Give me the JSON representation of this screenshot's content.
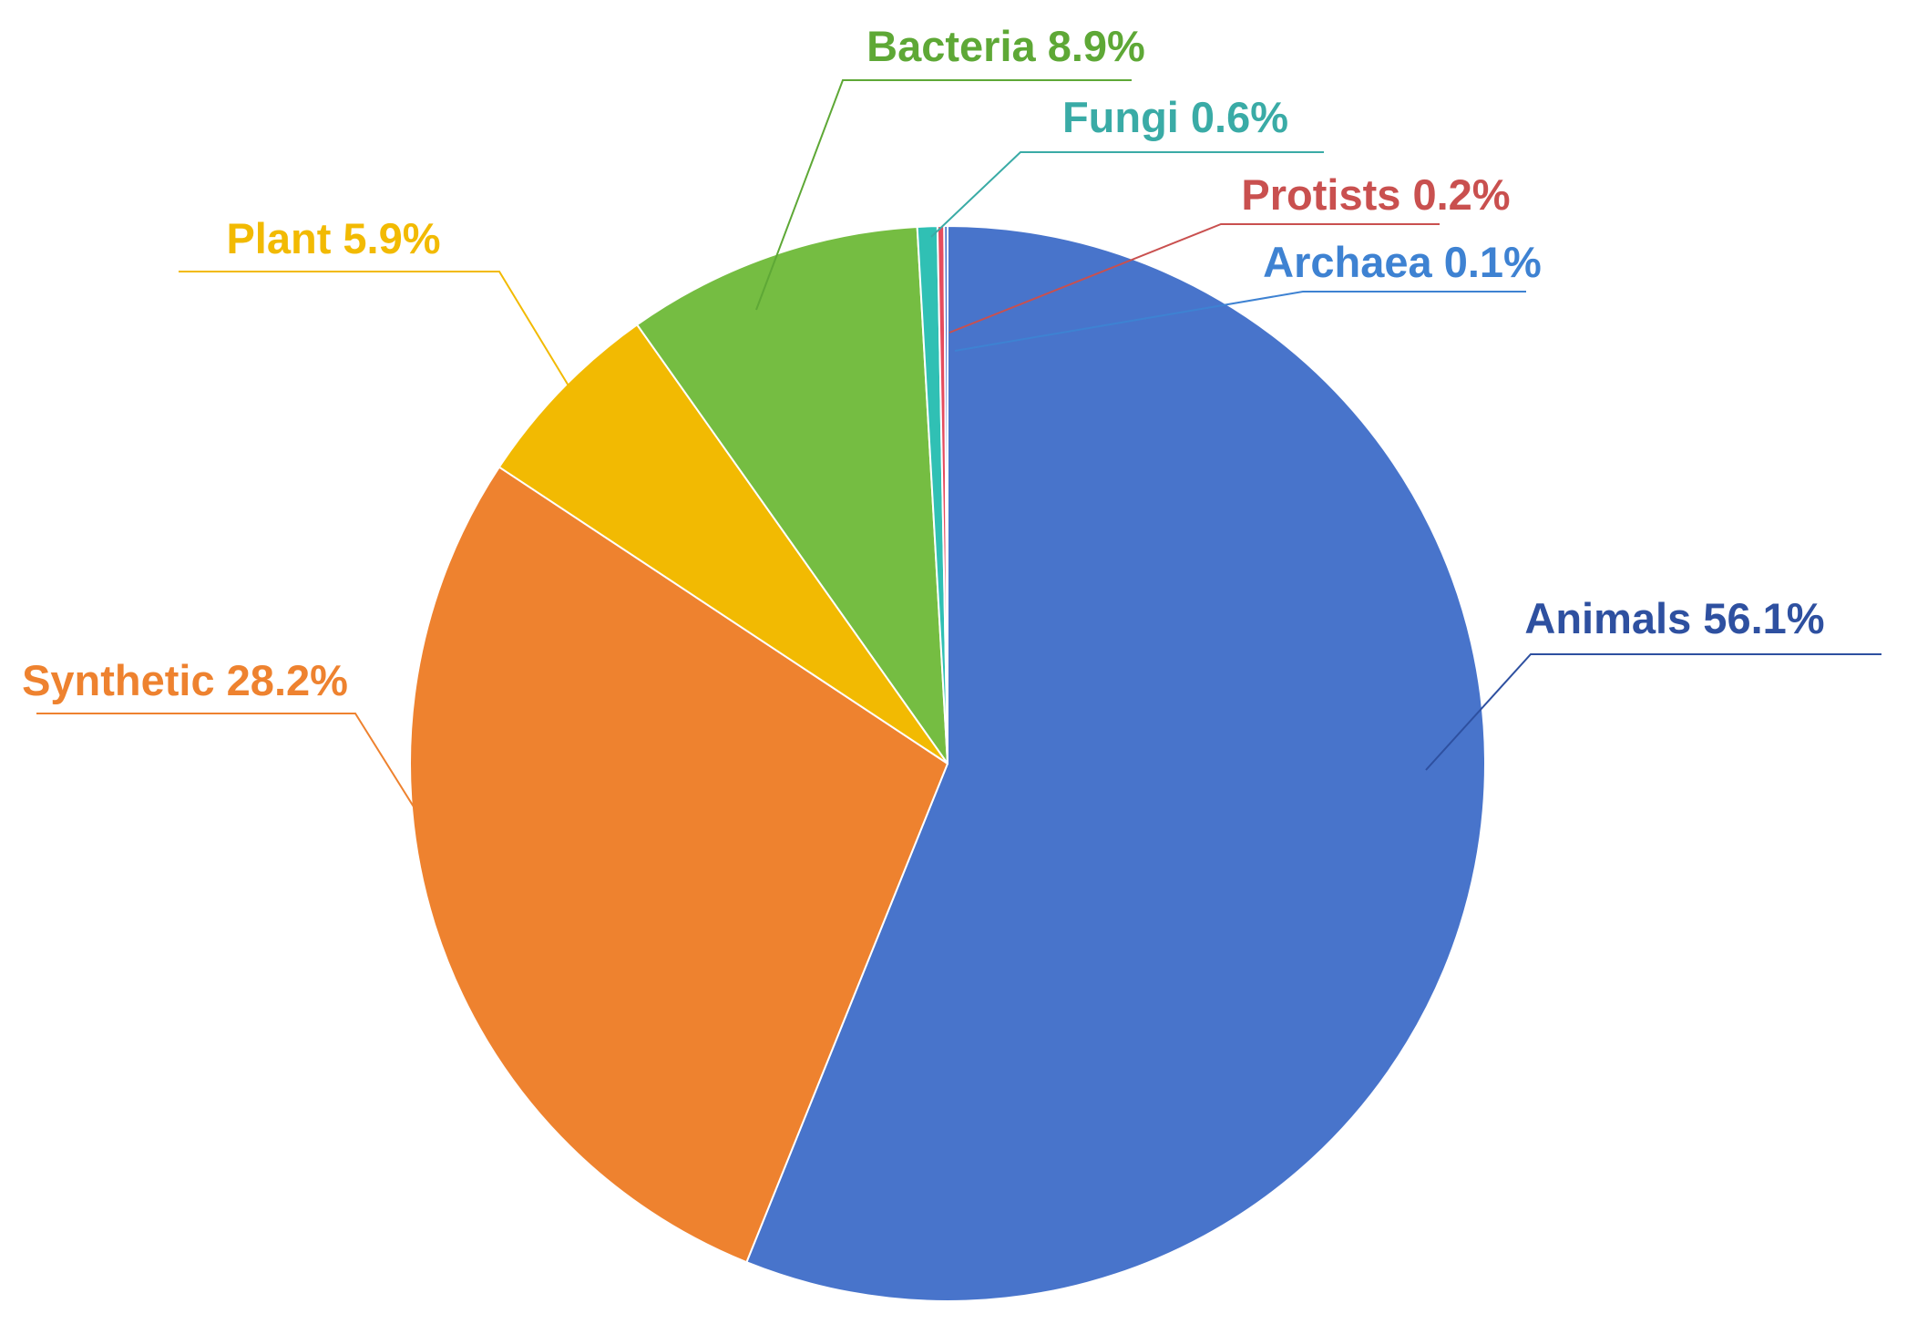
{
  "chart_data": {
    "type": "pie",
    "start_angle_deg": 0,
    "direction": "clockwise",
    "slices": [
      {
        "name": "Animals",
        "value": 56.1,
        "label": "Animals 56.1%",
        "color": "#4874CB",
        "label_color": "#2E50A0"
      },
      {
        "name": "Synthetic",
        "value": 28.2,
        "label": "Synthetic 28.2%",
        "color": "#EE822F",
        "label_color": "#EE822F"
      },
      {
        "name": "Plant",
        "value": 5.9,
        "label": "Plant 5.9%",
        "color": "#F2BA02",
        "label_color": "#F2BA02"
      },
      {
        "name": "Bacteria",
        "value": 8.9,
        "label": "Bacteria 8.9%",
        "color": "#75BD42",
        "label_color": "#5EA836"
      },
      {
        "name": "Fungi",
        "value": 0.6,
        "label": "Fungi 0.6%",
        "color": "#30C0B4",
        "label_color": "#3AABA6"
      },
      {
        "name": "Protists",
        "value": 0.2,
        "label": "Protists 0.2%",
        "color": "#E54C5E",
        "label_color": "#C9504F"
      },
      {
        "name": "Archaea",
        "value": 0.1,
        "label": "Archaea 0.1%",
        "color": "#4874CB",
        "label_color": "#3E82D2"
      }
    ]
  }
}
